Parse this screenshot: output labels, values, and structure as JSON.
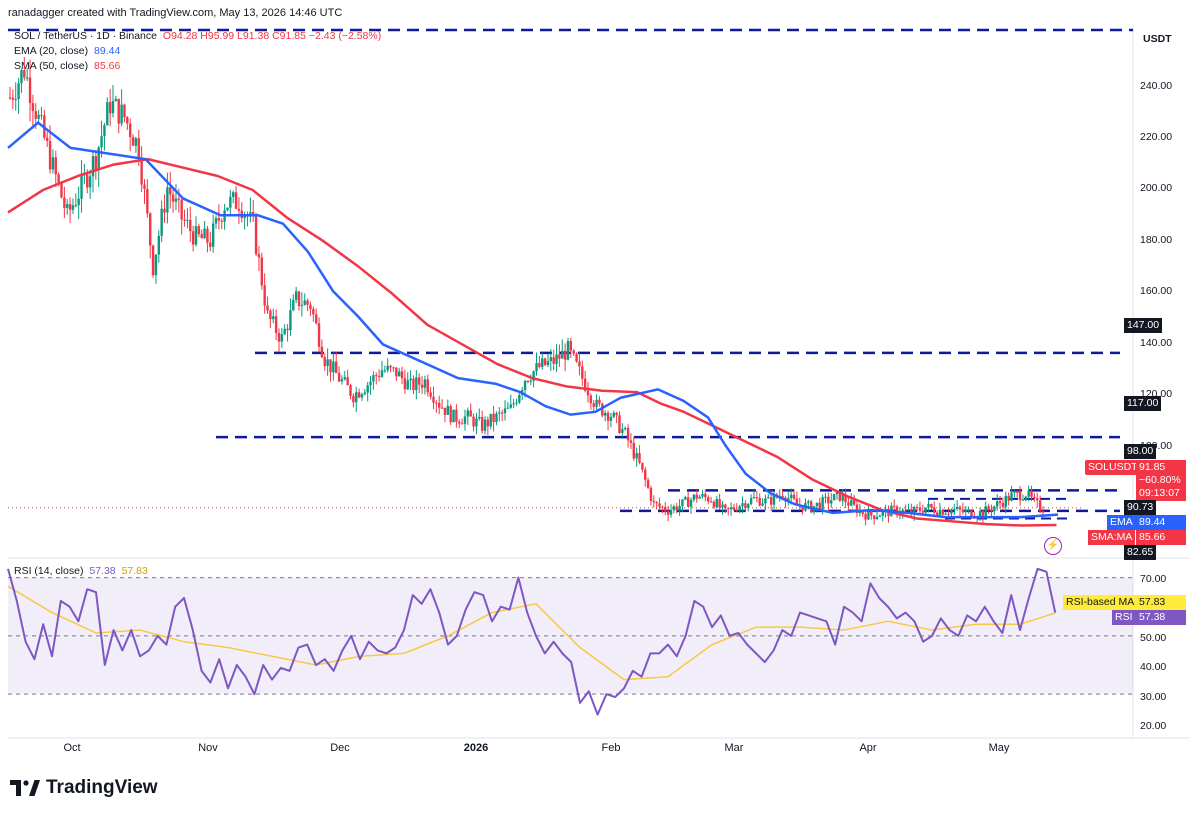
{
  "header": {
    "text": "ranadagger created with TradingView.com, May 13, 2026 14:46 UTC"
  },
  "legend": {
    "symbol": "SOL / TetherUS · 1D · Binance",
    "ohlc": "O94.28 H95.99 L91.38 C91.85 −2.43 (−2.58%)",
    "ema_label": "EMA (20, close)",
    "ema_value": "89.44",
    "sma_label": "SMA (50, close)",
    "sma_value": "85.66",
    "rsi_label": "RSI (14, close)",
    "rsi_value": "57.38",
    "rsi_ma_value": "57.83"
  },
  "axis": {
    "unit": "USDT",
    "price_ticks": [
      "240.00",
      "220.00",
      "200.00",
      "180.00",
      "160.00",
      "140.00",
      "120.00",
      "100.00"
    ],
    "rsi_ticks": [
      "70.00",
      "60.00",
      "50.00",
      "40.00",
      "30.00",
      "20.00"
    ],
    "x_ticks": [
      "Oct",
      "Nov",
      "Dec",
      "2026",
      "Feb",
      "Mar",
      "Apr",
      "May"
    ]
  },
  "price_tags": {
    "level_147": "147.00",
    "level_117": "117.00",
    "level_98": "98.00",
    "symbol": "SOLUSDT",
    "price": "91.85",
    "change": "−60.80%",
    "countdown": "09:13:07",
    "level_9073": "90.73",
    "ema_name": "EMA",
    "ema_val": "89.44",
    "sma_name": "SMA:MA",
    "sma_val": "85.66",
    "low": "82.65"
  },
  "rsi_tags": {
    "ma_name": "RSI-based MA",
    "ma_val": "57.83",
    "rsi_name": "RSI",
    "rsi_val": "57.38"
  },
  "brand": "TradingView",
  "colors": {
    "up": "#089981",
    "down": "#f23645",
    "ema": "#2962ff",
    "sma": "#f23645",
    "rsi": "#7e57c2",
    "rsi_ma": "#f7c948",
    "level": "#0d1a9e"
  },
  "chart_data": {
    "type": "candlestick",
    "ylim": [
      75,
      262
    ],
    "levels": [
      262,
      147,
      117,
      98,
      90.73
    ],
    "ema20": [
      [
        0,
        220
      ],
      [
        12,
        229
      ],
      [
        25,
        220
      ],
      [
        40,
        218
      ],
      [
        55,
        216
      ],
      [
        70,
        202
      ],
      [
        85,
        196
      ],
      [
        100,
        196
      ],
      [
        110,
        193
      ],
      [
        120,
        183
      ],
      [
        130,
        169
      ],
      [
        140,
        160
      ],
      [
        150,
        150
      ],
      [
        165,
        144
      ],
      [
        180,
        138
      ],
      [
        195,
        136
      ],
      [
        205,
        133
      ],
      [
        215,
        128
      ],
      [
        225,
        125
      ],
      [
        235,
        126
      ],
      [
        245,
        131
      ],
      [
        255,
        133
      ],
      [
        260,
        134
      ],
      [
        270,
        130
      ],
      [
        280,
        124
      ],
      [
        287,
        114
      ],
      [
        295,
        104
      ],
      [
        305,
        97
      ],
      [
        315,
        93
      ],
      [
        330,
        90
      ],
      [
        345,
        91
      ],
      [
        360,
        90
      ],
      [
        375,
        88.5
      ],
      [
        390,
        88.5
      ],
      [
        405,
        88.5
      ],
      [
        420,
        89.4
      ]
    ],
    "sma50": [
      [
        0,
        197
      ],
      [
        15,
        205
      ],
      [
        30,
        210
      ],
      [
        45,
        214
      ],
      [
        60,
        216
      ],
      [
        75,
        213
      ],
      [
        90,
        210
      ],
      [
        105,
        205
      ],
      [
        120,
        195
      ],
      [
        135,
        187
      ],
      [
        150,
        178
      ],
      [
        165,
        168
      ],
      [
        180,
        157
      ],
      [
        195,
        150
      ],
      [
        210,
        143
      ],
      [
        225,
        138
      ],
      [
        240,
        135
      ],
      [
        255,
        133.5
      ],
      [
        270,
        133
      ],
      [
        280,
        129
      ],
      [
        290,
        126
      ],
      [
        300,
        122
      ],
      [
        315,
        116
      ],
      [
        330,
        110
      ],
      [
        345,
        102
      ],
      [
        360,
        96
      ],
      [
        375,
        91
      ],
      [
        390,
        88
      ],
      [
        405,
        87
      ],
      [
        420,
        86
      ],
      [
        435,
        85.5
      ],
      [
        450,
        85.7
      ]
    ],
    "candles_desc": "Daily SOL/USDT candles from mid-Sep 2025 to May 13 2026; generated from close path",
    "close_path": [
      [
        0,
        238
      ],
      [
        5,
        248
      ],
      [
        10,
        230
      ],
      [
        15,
        213
      ],
      [
        20,
        196
      ],
      [
        25,
        206
      ],
      [
        30,
        217
      ],
      [
        35,
        236
      ],
      [
        40,
        231
      ],
      [
        45,
        220
      ],
      [
        50,
        178
      ],
      [
        55,
        206
      ],
      [
        60,
        195
      ],
      [
        65,
        188
      ],
      [
        70,
        187
      ],
      [
        75,
        200
      ],
      [
        80,
        201
      ],
      [
        85,
        192
      ],
      [
        90,
        160
      ],
      [
        95,
        152
      ],
      [
        100,
        166
      ],
      [
        105,
        164
      ],
      [
        110,
        145
      ],
      [
        115,
        138
      ],
      [
        120,
        132
      ],
      [
        125,
        136
      ],
      [
        130,
        141
      ],
      [
        135,
        140
      ],
      [
        140,
        135
      ],
      [
        145,
        137
      ],
      [
        150,
        129
      ],
      [
        155,
        124
      ],
      [
        160,
        124
      ],
      [
        165,
        121
      ],
      [
        170,
        124
      ],
      [
        175,
        127
      ],
      [
        180,
        138
      ],
      [
        185,
        142
      ],
      [
        190,
        144
      ],
      [
        195,
        148
      ],
      [
        200,
        138
      ],
      [
        205,
        128
      ],
      [
        210,
        125
      ],
      [
        215,
        118
      ],
      [
        220,
        107
      ],
      [
        225,
        93
      ],
      [
        230,
        91
      ],
      [
        235,
        93
      ],
      [
        240,
        96
      ],
      [
        245,
        95
      ],
      [
        250,
        90
      ],
      [
        255,
        93
      ],
      [
        260,
        95
      ],
      [
        265,
        94
      ],
      [
        270,
        97
      ],
      [
        275,
        93
      ],
      [
        280,
        92
      ],
      [
        285,
        94
      ],
      [
        290,
        96
      ],
      [
        295,
        92
      ],
      [
        300,
        89
      ],
      [
        305,
        90
      ],
      [
        310,
        91
      ],
      [
        315,
        90
      ],
      [
        320,
        92
      ],
      [
        325,
        91
      ],
      [
        330,
        91
      ],
      [
        335,
        90
      ],
      [
        340,
        90
      ],
      [
        345,
        93
      ],
      [
        350,
        96
      ],
      [
        355,
        97
      ],
      [
        358,
        93.5
      ],
      [
        360,
        91.85
      ]
    ],
    "rsi": [
      [
        0,
        73
      ],
      [
        4,
        62
      ],
      [
        8,
        48
      ],
      [
        12,
        42
      ],
      [
        16,
        54
      ],
      [
        20,
        43
      ],
      [
        24,
        62
      ],
      [
        28,
        60
      ],
      [
        32,
        55
      ],
      [
        36,
        66
      ],
      [
        40,
        65
      ],
      [
        44,
        40
      ],
      [
        48,
        52
      ],
      [
        52,
        45
      ],
      [
        56,
        52
      ],
      [
        60,
        43
      ],
      [
        64,
        45
      ],
      [
        68,
        50
      ],
      [
        72,
        47
      ],
      [
        76,
        60
      ],
      [
        80,
        63
      ],
      [
        84,
        52
      ],
      [
        88,
        38
      ],
      [
        92,
        34
      ],
      [
        96,
        42
      ],
      [
        100,
        32
      ],
      [
        104,
        40
      ],
      [
        108,
        36
      ],
      [
        112,
        30
      ],
      [
        116,
        40
      ],
      [
        120,
        35
      ],
      [
        124,
        39
      ],
      [
        128,
        38
      ],
      [
        132,
        46
      ],
      [
        136,
        47
      ],
      [
        140,
        40
      ],
      [
        144,
        42
      ],
      [
        148,
        38
      ],
      [
        152,
        45
      ],
      [
        156,
        50
      ],
      [
        160,
        42
      ],
      [
        164,
        48
      ],
      [
        168,
        45
      ],
      [
        172,
        44
      ],
      [
        176,
        46
      ],
      [
        180,
        52
      ],
      [
        184,
        64
      ],
      [
        188,
        61
      ],
      [
        192,
        66
      ],
      [
        196,
        58
      ],
      [
        200,
        47
      ],
      [
        204,
        50
      ],
      [
        208,
        59
      ],
      [
        212,
        65
      ],
      [
        216,
        64
      ],
      [
        220,
        55
      ],
      [
        224,
        60
      ],
      [
        228,
        59
      ],
      [
        232,
        70
      ],
      [
        236,
        58
      ],
      [
        240,
        50
      ],
      [
        244,
        44
      ],
      [
        248,
        48
      ],
      [
        252,
        44
      ],
      [
        256,
        41
      ],
      [
        260,
        27
      ],
      [
        264,
        31
      ],
      [
        268,
        23
      ],
      [
        272,
        30
      ],
      [
        276,
        29
      ],
      [
        280,
        32
      ],
      [
        284,
        38
      ],
      [
        288,
        36
      ],
      [
        292,
        44
      ],
      [
        296,
        44
      ],
      [
        300,
        47
      ],
      [
        304,
        43
      ],
      [
        308,
        50
      ],
      [
        312,
        62
      ],
      [
        316,
        60
      ],
      [
        320,
        53
      ],
      [
        324,
        57
      ],
      [
        328,
        50
      ],
      [
        332,
        51
      ],
      [
        336,
        47
      ],
      [
        340,
        44
      ],
      [
        344,
        41
      ],
      [
        348,
        45
      ],
      [
        352,
        52
      ],
      [
        356,
        50
      ],
      [
        360,
        58
      ],
      [
        364,
        57
      ],
      [
        368,
        56
      ],
      [
        372,
        55
      ],
      [
        376,
        47
      ],
      [
        380,
        60
      ],
      [
        384,
        58
      ],
      [
        388,
        55
      ],
      [
        392,
        68
      ],
      [
        396,
        63
      ],
      [
        400,
        60
      ],
      [
        404,
        56
      ],
      [
        408,
        58
      ],
      [
        412,
        55
      ],
      [
        416,
        48
      ],
      [
        420,
        50
      ],
      [
        424,
        56
      ],
      [
        428,
        52
      ],
      [
        432,
        50
      ],
      [
        436,
        57
      ],
      [
        440,
        55
      ],
      [
        444,
        60
      ],
      [
        448,
        55
      ],
      [
        452,
        51
      ],
      [
        456,
        64
      ],
      [
        460,
        52
      ],
      [
        464,
        63
      ],
      [
        468,
        73
      ],
      [
        472,
        72
      ],
      [
        476,
        58
      ]
    ],
    "rsi_ma": [
      [
        0,
        67
      ],
      [
        20,
        58
      ],
      [
        40,
        51
      ],
      [
        60,
        52
      ],
      [
        80,
        48
      ],
      [
        100,
        46
      ],
      [
        120,
        43
      ],
      [
        140,
        40
      ],
      [
        160,
        43
      ],
      [
        180,
        44
      ],
      [
        200,
        50
      ],
      [
        220,
        58
      ],
      [
        240,
        61
      ],
      [
        260,
        46
      ],
      [
        280,
        35
      ],
      [
        300,
        36
      ],
      [
        320,
        47
      ],
      [
        340,
        53
      ],
      [
        360,
        53
      ],
      [
        380,
        52
      ],
      [
        400,
        55
      ],
      [
        420,
        52
      ],
      [
        440,
        54
      ],
      [
        460,
        54
      ],
      [
        476,
        57.8
      ]
    ],
    "rsi_ylim": [
      16,
      75
    ],
    "rsi_bands": [
      70,
      50,
      30
    ]
  }
}
